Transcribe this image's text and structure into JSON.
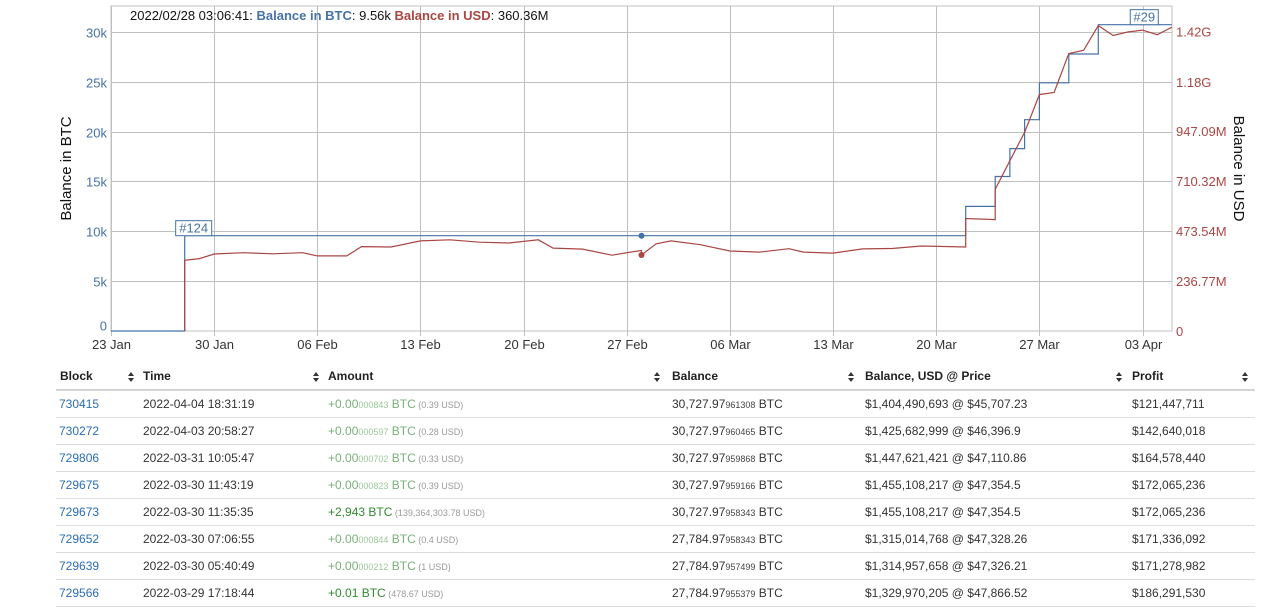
{
  "tooltip": {
    "timestamp": "2022/02/28 03:06:41",
    "btc_label": "Balance in BTC",
    "btc_value": "9.56k",
    "usd_label": "Balance in USD",
    "usd_value": "360.36M"
  },
  "colors": {
    "btc": "#4572a7",
    "usd": "#aa4643",
    "link": "#2a6db5",
    "positive": "#2f8a2f"
  },
  "chart_data": {
    "type": "line",
    "title": "",
    "xlabel": "",
    "ylabel": "Balance in BTC",
    "y2label": "Balance in USD",
    "x_range": [
      "2022-01-23",
      "2022-04-05"
    ],
    "x_ticks": [
      {
        "date": "2022-01-23",
        "label": "23 Jan"
      },
      {
        "date": "2022-01-30",
        "label": "30 Jan"
      },
      {
        "date": "2022-02-06",
        "label": "06 Feb"
      },
      {
        "date": "2022-02-13",
        "label": "13 Feb"
      },
      {
        "date": "2022-02-20",
        "label": "20 Feb"
      },
      {
        "date": "2022-02-27",
        "label": "27 Feb"
      },
      {
        "date": "2022-03-06",
        "label": "06 Mar"
      },
      {
        "date": "2022-03-13",
        "label": "13 Mar"
      },
      {
        "date": "2022-03-20",
        "label": "20 Mar"
      },
      {
        "date": "2022-03-27",
        "label": "27 Mar"
      },
      {
        "date": "2022-04-03",
        "label": "03 Apr"
      }
    ],
    "ylim": [
      0,
      32600
    ],
    "y_ticks": [
      {
        "value": 0,
        "label": "0"
      },
      {
        "value": 5000,
        "label": "5k"
      },
      {
        "value": 10000,
        "label": "10k"
      },
      {
        "value": 15000,
        "label": "15k"
      },
      {
        "value": 20000,
        "label": "20k"
      },
      {
        "value": 25000,
        "label": "25k"
      },
      {
        "value": 30000,
        "label": "30k"
      }
    ],
    "y2lim": [
      0,
      1540000000
    ],
    "y2_ticks": [
      {
        "value": 0,
        "label": "0"
      },
      {
        "value": 236770000,
        "label": "236.77M"
      },
      {
        "value": 473540000,
        "label": "473.54M"
      },
      {
        "value": 710320000,
        "label": "710.32M"
      },
      {
        "value": 947090000,
        "label": "947.09M"
      },
      {
        "value": 1180000000,
        "label": "1.18G"
      },
      {
        "value": 1420000000,
        "label": "1.42G"
      }
    ],
    "grid": true,
    "series": [
      {
        "name": "Balance in BTC",
        "axis": "left",
        "step": true,
        "points": [
          [
            "2022-01-23",
            0
          ],
          [
            "2022-01-28",
            0
          ],
          [
            "2022-01-28",
            9560
          ],
          [
            "2022-03-22",
            9560
          ],
          [
            "2022-03-22",
            12500
          ],
          [
            "2022-03-24",
            15500
          ],
          [
            "2022-03-25",
            18300
          ],
          [
            "2022-03-26",
            21200
          ],
          [
            "2022-03-27",
            24900
          ],
          [
            "2022-03-29",
            27785
          ],
          [
            "2022-03-31",
            30728
          ],
          [
            "2022-04-05",
            30728
          ]
        ]
      },
      {
        "name": "Balance in USD",
        "axis": "right",
        "points": [
          [
            "2022-01-28",
            0
          ],
          [
            "2022-01-28",
            335000000
          ],
          [
            "2022-01-29",
            343000000
          ],
          [
            "2022-01-30",
            365000000
          ],
          [
            "2022-02-01",
            371000000
          ],
          [
            "2022-02-03",
            366000000
          ],
          [
            "2022-02-05",
            371000000
          ],
          [
            "2022-02-06",
            356000000
          ],
          [
            "2022-02-08",
            356000000
          ],
          [
            "2022-02-09",
            400000000
          ],
          [
            "2022-02-11",
            398000000
          ],
          [
            "2022-02-13",
            427000000
          ],
          [
            "2022-02-15",
            432000000
          ],
          [
            "2022-02-17",
            421000000
          ],
          [
            "2022-02-19",
            417000000
          ],
          [
            "2022-02-21",
            432000000
          ],
          [
            "2022-02-22",
            393000000
          ],
          [
            "2022-02-24",
            388000000
          ],
          [
            "2022-02-26",
            359000000
          ],
          [
            "2022-02-28",
            382000000
          ],
          [
            "2022-02-28",
            360360000
          ],
          [
            "2022-03-01",
            413000000
          ],
          [
            "2022-03-02",
            427000000
          ],
          [
            "2022-03-04",
            409000000
          ],
          [
            "2022-03-06",
            379000000
          ],
          [
            "2022-03-08",
            374000000
          ],
          [
            "2022-03-10",
            390000000
          ],
          [
            "2022-03-11",
            374000000
          ],
          [
            "2022-03-13",
            369000000
          ],
          [
            "2022-03-15",
            389000000
          ],
          [
            "2022-03-17",
            391000000
          ],
          [
            "2022-03-19",
            403000000
          ],
          [
            "2022-03-22",
            398000000
          ],
          [
            "2022-03-22",
            533000000
          ],
          [
            "2022-03-24",
            528000000
          ],
          [
            "2022-03-24",
            671000000
          ],
          [
            "2022-03-25",
            807000000
          ],
          [
            "2022-03-26",
            941000000
          ],
          [
            "2022-03-27",
            1120000000
          ],
          [
            "2022-03-28",
            1130000000
          ],
          [
            "2022-03-29",
            1315000000
          ],
          [
            "2022-03-30",
            1330000000
          ],
          [
            "2022-03-31",
            1447000000
          ],
          [
            "2022-04-01",
            1400000000
          ],
          [
            "2022-04-02",
            1417000000
          ],
          [
            "2022-04-03",
            1426000000
          ],
          [
            "2022-04-04",
            1404000000
          ],
          [
            "2022-04-05",
            1440000000
          ]
        ]
      }
    ],
    "markers": [
      {
        "date": "2022-02-28",
        "btc": 9560,
        "usd": 360360000
      }
    ],
    "flags": [
      {
        "label": "#124",
        "date": "2022-01-28",
        "btc": 9560
      },
      {
        "label": "#29",
        "date": "2022-04-04",
        "btc": 30728
      }
    ]
  },
  "table": {
    "headers": [
      "Block",
      "Time",
      "Amount",
      "Balance",
      "Balance, USD @ Price",
      "Profit"
    ],
    "rows": [
      {
        "block": "730415",
        "time": "2022-04-04 18:31:19",
        "amt_int": "+0.00",
        "amt_dec": "000843",
        "amt_cur": " BTC",
        "amt_usd": " (0.39 USD)",
        "strong": false,
        "bal_int": "30,727.97",
        "bal_dec": "961308",
        "bal_cur": " BTC",
        "usd_price": "$1,404,490,693 @ $45,707.23",
        "profit": "$121,447,711"
      },
      {
        "block": "730272",
        "time": "2022-04-03 20:58:27",
        "amt_int": "+0.00",
        "amt_dec": "000597",
        "amt_cur": " BTC",
        "amt_usd": " (0.28 USD)",
        "strong": false,
        "bal_int": "30,727.97",
        "bal_dec": "960465",
        "bal_cur": " BTC",
        "usd_price": "$1,425,682,999 @ $46,396.9",
        "profit": "$142,640,018"
      },
      {
        "block": "729806",
        "time": "2022-03-31 10:05:47",
        "amt_int": "+0.00",
        "amt_dec": "000702",
        "amt_cur": " BTC",
        "amt_usd": " (0.33 USD)",
        "strong": false,
        "bal_int": "30,727.97",
        "bal_dec": "959868",
        "bal_cur": " BTC",
        "usd_price": "$1,447,621,421 @ $47,110.86",
        "profit": "$164,578,440"
      },
      {
        "block": "729675",
        "time": "2022-03-30 11:43:19",
        "amt_int": "+0.00",
        "amt_dec": "000823",
        "amt_cur": " BTC",
        "amt_usd": " (0.39 USD)",
        "strong": false,
        "bal_int": "30,727.97",
        "bal_dec": "959166",
        "bal_cur": " BTC",
        "usd_price": "$1,455,108,217 @ $47,354.5",
        "profit": "$172,065,236"
      },
      {
        "block": "729673",
        "time": "2022-03-30 11:35:35",
        "amt_int": "+2,943",
        "amt_dec": "",
        "amt_cur": " BTC",
        "amt_usd": " (139,364,303.78 USD)",
        "strong": true,
        "bal_int": "30,727.97",
        "bal_dec": "958343",
        "bal_cur": " BTC",
        "usd_price": "$1,455,108,217 @ $47,354.5",
        "profit": "$172,065,236"
      },
      {
        "block": "729652",
        "time": "2022-03-30 07:06:55",
        "amt_int": "+0.00",
        "amt_dec": "000844",
        "amt_cur": " BTC",
        "amt_usd": " (0.4 USD)",
        "strong": false,
        "bal_int": "27,784.97",
        "bal_dec": "958343",
        "bal_cur": " BTC",
        "usd_price": "$1,315,014,768 @ $47,328.26",
        "profit": "$171,336,092"
      },
      {
        "block": "729639",
        "time": "2022-03-30 05:40:49",
        "amt_int": "+0.00",
        "amt_dec": "000212",
        "amt_cur": " BTC",
        "amt_usd": " (1 USD)",
        "strong": false,
        "bal_int": "27,784.97",
        "bal_dec": "957499",
        "bal_cur": " BTC",
        "usd_price": "$1,314,957,658 @ $47,326.21",
        "profit": "$171,278,982"
      },
      {
        "block": "729566",
        "time": "2022-03-29 17:18:44",
        "amt_int": "+0.01",
        "amt_dec": "",
        "amt_cur": " BTC",
        "amt_usd": " (478.67 USD)",
        "strong": true,
        "bal_int": "27,784.97",
        "bal_dec": "955379",
        "bal_cur": " BTC",
        "usd_price": "$1,329,970,205 @ $47,866.52",
        "profit": "$186,291,530"
      }
    ]
  }
}
